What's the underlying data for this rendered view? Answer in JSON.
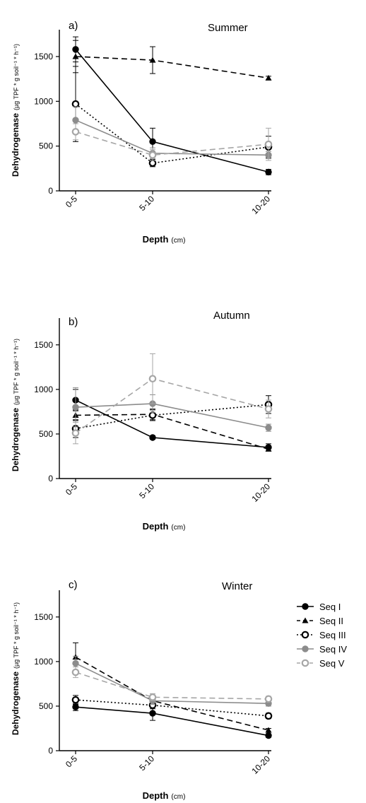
{
  "chart_data": [
    {
      "type": "line",
      "panel_label": "a)",
      "title": "Summer",
      "xlabel_main": "Depth",
      "xlabel_unit": "(cm)",
      "ylabel_main": "Dehydrogenase",
      "ylabel_unit": "(µg TPF * g soil⁻¹ * h⁻¹)",
      "categories": [
        "0-5",
        "5-10",
        "10-20"
      ],
      "ylim": [
        0,
        1800
      ],
      "yticks": [
        0,
        500,
        1000,
        1500
      ],
      "grid": false,
      "series": [
        {
          "name": "Seq I",
          "values": [
            1580,
            550,
            210
          ],
          "err": [
            140,
            150,
            30
          ]
        },
        {
          "name": "Seq II",
          "values": [
            1500,
            1460,
            1260
          ],
          "err": [
            180,
            150,
            20
          ]
        },
        {
          "name": "Seq III",
          "values": [
            970,
            310,
            490
          ],
          "err": [
            420,
            40,
            120
          ]
        },
        {
          "name": "Seq IV",
          "values": [
            790,
            420,
            400
          ],
          "err": [
            150,
            60,
            40
          ]
        },
        {
          "name": "Seq V",
          "values": [
            660,
            400,
            520
          ],
          "err": [
            90,
            60,
            180
          ]
        }
      ]
    },
    {
      "type": "line",
      "panel_label": "b)",
      "title": "Autumn",
      "xlabel_main": "Depth",
      "xlabel_unit": "(cm)",
      "ylabel_main": "Dehydrogenase",
      "ylabel_unit": "(µg TPF * g soil⁻¹ * h⁻¹)",
      "categories": [
        "0-5",
        "5-10",
        "10-20"
      ],
      "ylim": [
        0,
        1800
      ],
      "yticks": [
        0,
        500,
        1000,
        1500
      ],
      "grid": false,
      "series": [
        {
          "name": "Seq I",
          "values": [
            880,
            460,
            350
          ],
          "err": [
            120,
            20,
            40
          ]
        },
        {
          "name": "Seq II",
          "values": [
            710,
            720,
            330
          ],
          "err": [
            60,
            60,
            20
          ]
        },
        {
          "name": "Seq III",
          "values": [
            560,
            710,
            830
          ],
          "err": [
            100,
            60,
            100
          ]
        },
        {
          "name": "Seq IV",
          "values": [
            800,
            840,
            570
          ],
          "err": [
            220,
            100,
            40
          ]
        },
        {
          "name": "Seq V",
          "values": [
            510,
            1120,
            780
          ],
          "err": [
            120,
            280,
            100
          ]
        }
      ]
    },
    {
      "type": "line",
      "panel_label": "c)",
      "title": "Winter",
      "xlabel_main": "Depth",
      "xlabel_unit": "(cm)",
      "ylabel_main": "Dehydrogenase",
      "ylabel_unit": "(µg TPF * g soil⁻¹ * h⁻¹)",
      "categories": [
        "0-5",
        "5-10",
        "10-20"
      ],
      "ylim": [
        0,
        1800
      ],
      "yticks": [
        0,
        500,
        1000,
        1500
      ],
      "grid": false,
      "legend_position": "right",
      "series": [
        {
          "name": "Seq I",
          "values": [
            490,
            420,
            170
          ],
          "err": [
            40,
            80,
            20
          ]
        },
        {
          "name": "Seq II",
          "values": [
            1050,
            560,
            230
          ],
          "err": [
            160,
            60,
            20
          ]
        },
        {
          "name": "Seq III",
          "values": [
            570,
            510,
            390
          ],
          "err": [
            50,
            40,
            30
          ]
        },
        {
          "name": "Seq IV",
          "values": [
            980,
            560,
            530
          ],
          "err": [
            80,
            40,
            30
          ]
        },
        {
          "name": "Seq V",
          "values": [
            880,
            600,
            580
          ],
          "err": [
            60,
            40,
            30
          ]
        }
      ]
    }
  ],
  "legend": [
    {
      "label": "Seq I",
      "dash": "solid",
      "marker": "filled-circle",
      "color": "#000000"
    },
    {
      "label": "Seq II",
      "dash": "dashed",
      "marker": "filled-triangle",
      "color": "#000000"
    },
    {
      "label": "Seq III",
      "dash": "dotted",
      "marker": "open-circle",
      "color": "#000000"
    },
    {
      "label": "Seq IV",
      "dash": "solid",
      "marker": "filled-circle",
      "color": "#8c8c8c"
    },
    {
      "label": "Seq V",
      "dash": "dashed",
      "marker": "open-circle",
      "color": "#a6a6a6"
    }
  ]
}
